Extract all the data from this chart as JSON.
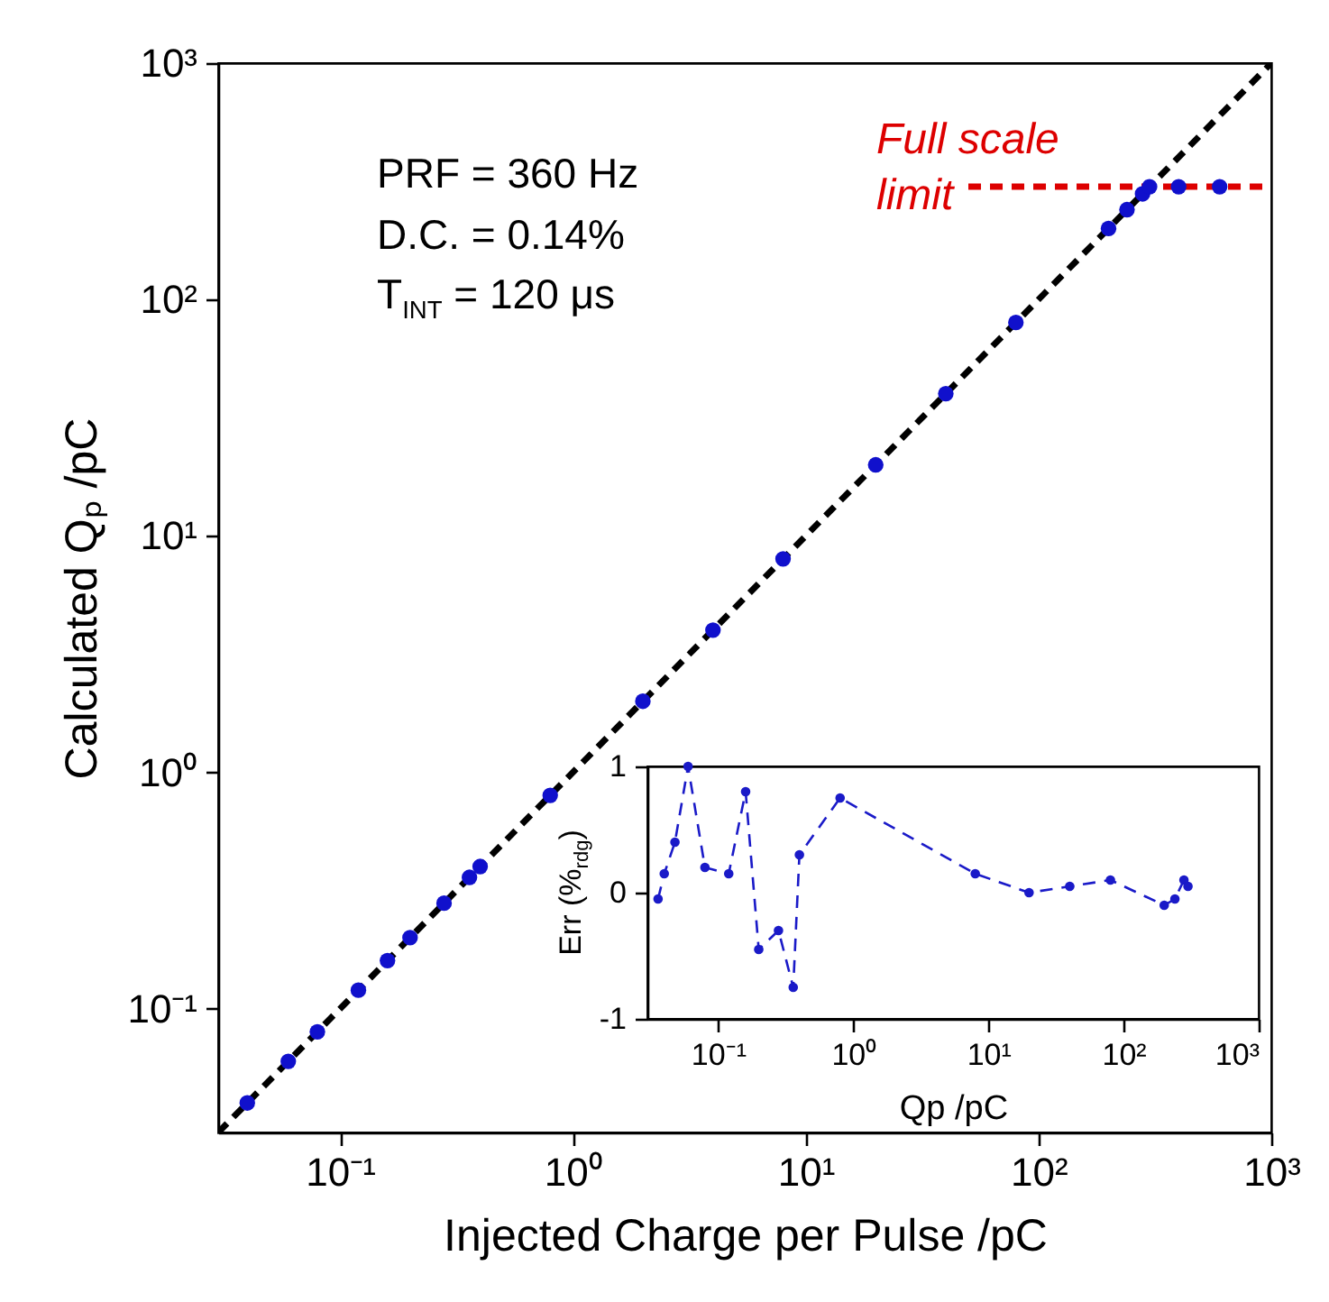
{
  "chart_data": [
    {
      "type": "scatter",
      "xlabel": "Injected Charge per Pulse /pC",
      "ylabel": "Calculated Qₚ /pC",
      "log": "xy",
      "xlim": [
        0.03,
        1000
      ],
      "ylim": [
        0.03,
        1000
      ],
      "xticks": [
        {
          "value": 0.1,
          "label": "10⁻¹"
        },
        {
          "value": 1,
          "label": "10⁰"
        },
        {
          "value": 10,
          "label": "10¹"
        },
        {
          "value": 100,
          "label": "10²"
        },
        {
          "value": 1000,
          "label": "10³"
        }
      ],
      "yticks": [
        {
          "value": 0.1,
          "label": "10⁻¹"
        },
        {
          "value": 1,
          "label": "10⁰"
        },
        {
          "value": 10,
          "label": "10¹"
        },
        {
          "value": 100,
          "label": "10²"
        },
        {
          "value": 1000,
          "label": "10³"
        }
      ],
      "grid": false,
      "series": [
        {
          "type": "line",
          "color": "#000000",
          "line_style": "dashed",
          "marker": "none",
          "x": [
            0.03,
            1000
          ],
          "values": [
            0.03,
            1000
          ]
        },
        {
          "type": "line",
          "color": "#dd0000",
          "line_style": "dashed",
          "marker": "none",
          "x": [
            50,
            1000
          ],
          "values": [
            300,
            300
          ]
        },
        {
          "color": "#1010cc",
          "marker": "circle",
          "x": [
            0.04,
            0.06,
            0.08,
            0.12,
            0.16,
            0.2,
            0.28,
            0.36,
            0.4,
            0.8,
            2,
            4,
            8,
            20,
            40,
            80,
            200,
            240,
            280,
            300,
            400,
            600
          ],
          "values": [
            0.04,
            0.06,
            0.08,
            0.12,
            0.16,
            0.2,
            0.28,
            0.36,
            0.4,
            0.8,
            2,
            4,
            8,
            20,
            40,
            80,
            200,
            240,
            280,
            300,
            300,
            300
          ]
        }
      ],
      "annotations": [
        "PRF = 360 Hz",
        "D.C. = 0.14%",
        "T$_{INT}$ = 120 μs",
        "Full scale limit"
      ]
    },
    {
      "type": "line",
      "xlabel": "Qp /pC",
      "ylabel": "Err (%$_{rdg}$)",
      "log": "x",
      "xlim": [
        0.03,
        1000
      ],
      "ylim": [
        -1,
        1
      ],
      "xticks": [
        {
          "value": 0.1,
          "label": "10⁻¹"
        },
        {
          "value": 1,
          "label": "10⁰"
        },
        {
          "value": 10,
          "label": "10¹"
        },
        {
          "value": 100,
          "label": "10²"
        },
        {
          "value": 1000,
          "label": "10³"
        }
      ],
      "yticks": [
        -1,
        0,
        1
      ],
      "grid": false,
      "series": [
        {
          "color": "#1a1ac8",
          "line_style": "dashed",
          "marker": "circle",
          "x": [
            0.036,
            0.04,
            0.048,
            0.06,
            0.08,
            0.12,
            0.16,
            0.2,
            0.28,
            0.36,
            0.4,
            0.8,
            8,
            20,
            40,
            80,
            200,
            240,
            280,
            300
          ],
          "values": [
            -0.05,
            0.15,
            0.4,
            1.0,
            0.2,
            0.15,
            0.8,
            -0.45,
            -0.3,
            -0.75,
            0.3,
            0.75,
            0.15,
            0,
            0.05,
            0.1,
            -0.1,
            -0.05,
            0.1,
            0.05
          ]
        }
      ]
    }
  ]
}
